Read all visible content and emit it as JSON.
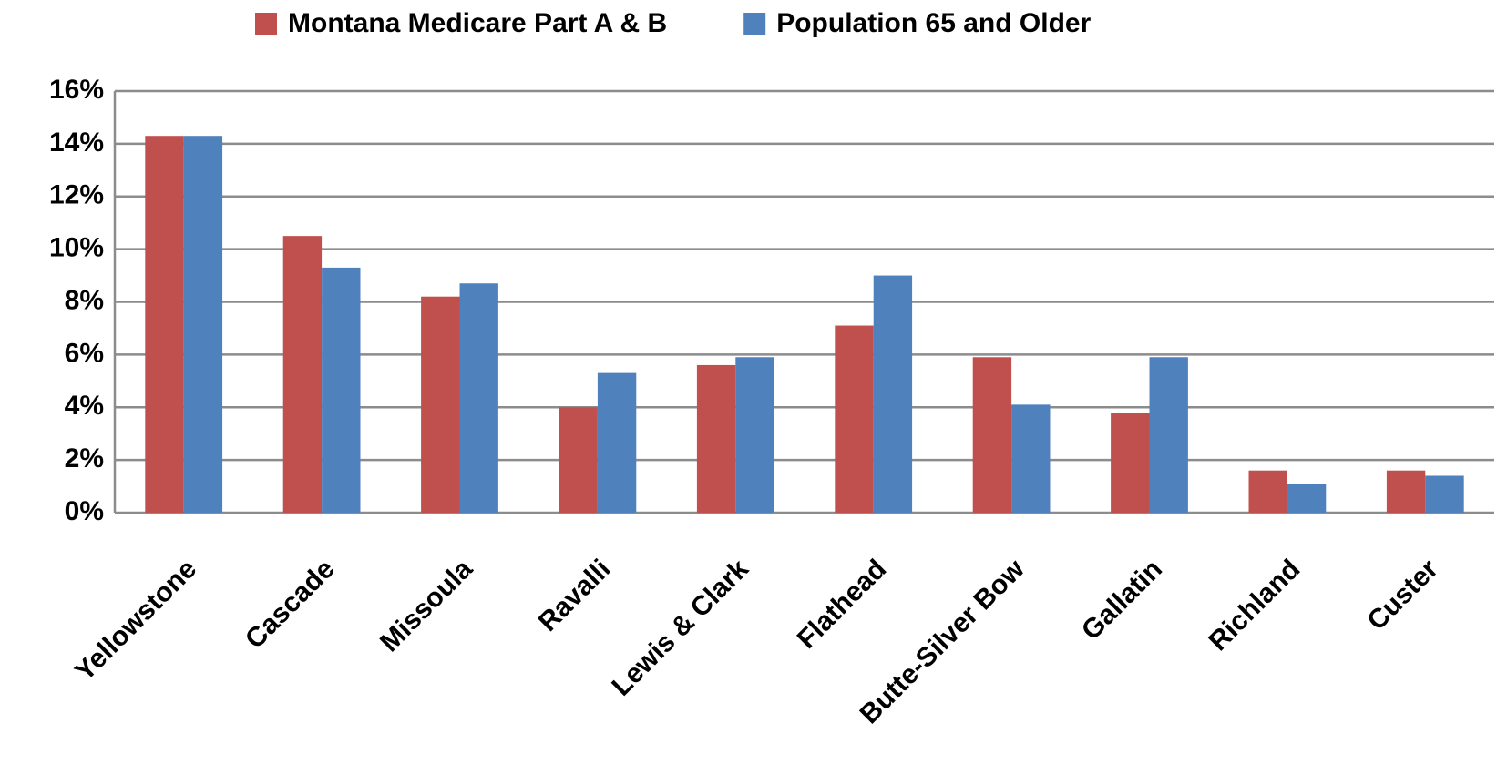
{
  "chart_data": {
    "type": "bar",
    "categories": [
      "Yellowstone",
      "Cascade",
      "Missoula",
      "Ravalli",
      "Lewis & Clark",
      "Flathead",
      "Butte-Silver Bow",
      "Gallatin",
      "Richland",
      "Custer"
    ],
    "series": [
      {
        "name": "Montana Medicare Part A & B",
        "color": "#c0504d",
        "values": [
          14.3,
          10.5,
          8.2,
          4.0,
          5.6,
          7.1,
          5.9,
          3.8,
          1.6,
          1.6
        ]
      },
      {
        "name": "Population 65 and Older",
        "color": "#4f81bd",
        "values": [
          14.3,
          9.3,
          8.7,
          5.3,
          5.9,
          9.0,
          4.1,
          5.9,
          1.1,
          1.4
        ]
      }
    ],
    "ylim": [
      0,
      16
    ],
    "yticks": [
      {
        "value": 0,
        "label": "0%"
      },
      {
        "value": 2,
        "label": "2%"
      },
      {
        "value": 4,
        "label": "4%"
      },
      {
        "value": 6,
        "label": "6%"
      },
      {
        "value": 8,
        "label": "8%"
      },
      {
        "value": 10,
        "label": "10%"
      },
      {
        "value": 12,
        "label": "12%"
      },
      {
        "value": 14,
        "label": "14%"
      },
      {
        "value": 16,
        "label": "16%"
      }
    ],
    "grid": true,
    "legend": "top"
  }
}
